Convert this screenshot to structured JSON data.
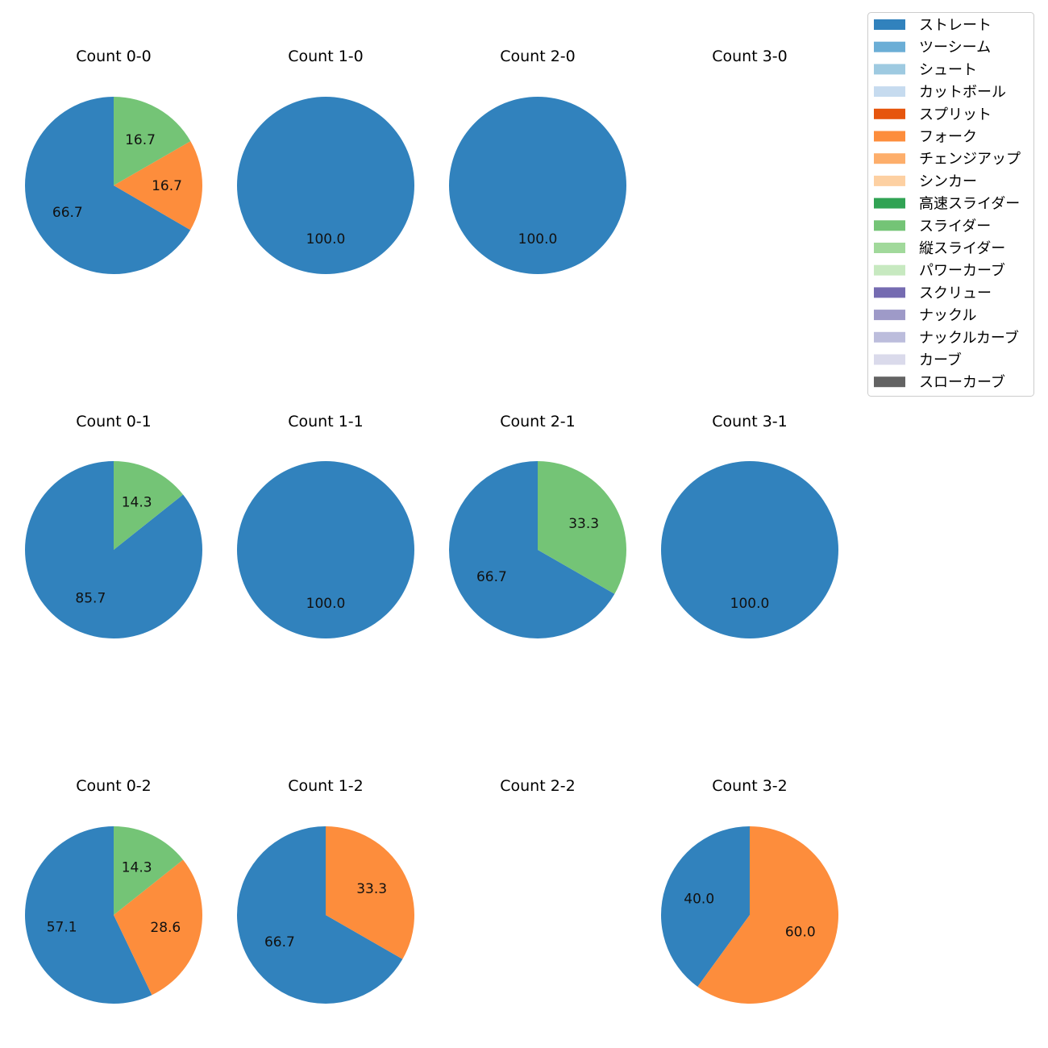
{
  "chart_data": {
    "type": "pie",
    "legend_position": "top-right",
    "legend": [
      {
        "label": "ストレート",
        "color": "#3182bd"
      },
      {
        "label": "ツーシーム",
        "color": "#6baed6"
      },
      {
        "label": "シュート",
        "color": "#9ecae1"
      },
      {
        "label": "カットボール",
        "color": "#c6dbef"
      },
      {
        "label": "スプリット",
        "color": "#e6550d"
      },
      {
        "label": "フォーク",
        "color": "#fd8d3c"
      },
      {
        "label": "チェンジアップ",
        "color": "#fdae6b"
      },
      {
        "label": "シンカー",
        "color": "#fdd0a2"
      },
      {
        "label": "高速スライダー",
        "color": "#31a354"
      },
      {
        "label": "スライダー",
        "color": "#74c476"
      },
      {
        "label": "縦スライダー",
        "color": "#a1d99b"
      },
      {
        "label": "パワーカーブ",
        "color": "#c7e9c0"
      },
      {
        "label": "スクリュー",
        "color": "#756bb1"
      },
      {
        "label": "ナックル",
        "color": "#9e9ac8"
      },
      {
        "label": "ナックルカーブ",
        "color": "#bcbddc"
      },
      {
        "label": "カーブ",
        "color": "#dadaeb"
      },
      {
        "label": "スローカーブ",
        "color": "#636363"
      }
    ],
    "panels": [
      {
        "title": "Count 0-0",
        "slices": [
          {
            "label": "ストレート",
            "value": 66.7,
            "text": "66.7"
          },
          {
            "label": "フォーク",
            "value": 16.7,
            "text": "16.7"
          },
          {
            "label": "スライダー",
            "value": 16.7,
            "text": "16.7"
          }
        ]
      },
      {
        "title": "Count 1-0",
        "slices": [
          {
            "label": "ストレート",
            "value": 100.0,
            "text": "100.0"
          }
        ]
      },
      {
        "title": "Count 2-0",
        "slices": [
          {
            "label": "ストレート",
            "value": 100.0,
            "text": "100.0"
          }
        ]
      },
      {
        "title": "Count 3-0",
        "slices": []
      },
      {
        "title": "Count 0-1",
        "slices": [
          {
            "label": "ストレート",
            "value": 85.7,
            "text": "85.7"
          },
          {
            "label": "スライダー",
            "value": 14.3,
            "text": "14.3"
          }
        ]
      },
      {
        "title": "Count 1-1",
        "slices": [
          {
            "label": "ストレート",
            "value": 100.0,
            "text": "100.0"
          }
        ]
      },
      {
        "title": "Count 2-1",
        "slices": [
          {
            "label": "ストレート",
            "value": 66.7,
            "text": "66.7"
          },
          {
            "label": "スライダー",
            "value": 33.3,
            "text": "33.3"
          }
        ]
      },
      {
        "title": "Count 3-1",
        "slices": [
          {
            "label": "ストレート",
            "value": 100.0,
            "text": "100.0"
          }
        ]
      },
      {
        "title": "Count 0-2",
        "slices": [
          {
            "label": "ストレート",
            "value": 57.1,
            "text": "57.1"
          },
          {
            "label": "フォーク",
            "value": 28.6,
            "text": "28.6"
          },
          {
            "label": "スライダー",
            "value": 14.3,
            "text": "14.3"
          }
        ]
      },
      {
        "title": "Count 1-2",
        "slices": [
          {
            "label": "ストレート",
            "value": 66.7,
            "text": "66.7"
          },
          {
            "label": "フォーク",
            "value": 33.3,
            "text": "33.3"
          }
        ]
      },
      {
        "title": "Count 2-2",
        "slices": []
      },
      {
        "title": "Count 3-2",
        "slices": [
          {
            "label": "ストレート",
            "value": 40.0,
            "text": "40.0"
          },
          {
            "label": "フォーク",
            "value": 60.0,
            "text": "60.0"
          }
        ]
      }
    ]
  }
}
